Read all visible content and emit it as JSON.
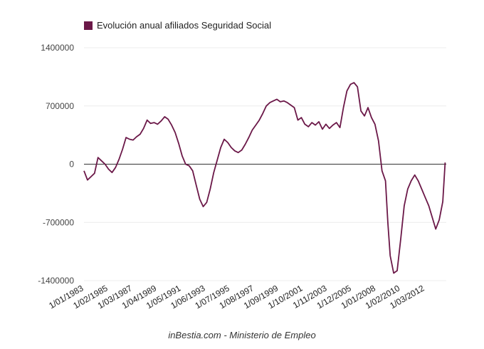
{
  "chart_data": {
    "type": "line",
    "title": "",
    "xlabel": "",
    "ylabel": "",
    "ylim": [
      -1400000,
      1400000
    ],
    "yticks": [
      1400000,
      700000,
      0,
      -700000,
      -1400000
    ],
    "ytick_labels": [
      "1400000",
      "700000",
      "0",
      "-700000",
      "-1400000"
    ],
    "xlim": [
      1983.0,
      2014.0
    ],
    "xticks": [
      1983.0,
      1985.08,
      1987.17,
      1989.25,
      1991.33,
      1993.42,
      1995.5,
      1997.58,
      1999.67,
      2001.75,
      2003.83,
      2005.92,
      2008.0,
      2010.08,
      2012.17
    ],
    "xtick_labels": [
      "1/01/1983",
      "1/02/1985",
      "1/03/1987",
      "1/04/1989",
      "1/05/1991",
      "1/06/1993",
      "1/07/1995",
      "1/08/1997",
      "1/09/1999",
      "1/10/2001",
      "1/11/2003",
      "1/12/2005",
      "1/01/2008",
      "1/02/2010",
      "1/03/2012"
    ],
    "legend_position": "top-left",
    "series": [
      {
        "name": "Evolución anual afiliados Seguridad Social",
        "color": "#6b1848",
        "x": [
          1983.0,
          1983.3,
          1983.6,
          1983.9,
          1984.2,
          1984.5,
          1984.8,
          1985.1,
          1985.4,
          1985.7,
          1986.0,
          1986.3,
          1986.6,
          1986.9,
          1987.2,
          1987.5,
          1987.8,
          1988.1,
          1988.4,
          1988.7,
          1989.0,
          1989.3,
          1989.6,
          1989.9,
          1990.2,
          1990.5,
          1990.8,
          1991.1,
          1991.4,
          1991.7,
          1992.0,
          1992.3,
          1992.6,
          1992.9,
          1993.2,
          1993.5,
          1993.8,
          1994.1,
          1994.4,
          1994.7,
          1995.0,
          1995.3,
          1995.6,
          1995.9,
          1996.2,
          1996.5,
          1996.8,
          1997.1,
          1997.4,
          1997.7,
          1998.0,
          1998.3,
          1998.6,
          1998.9,
          1999.2,
          1999.5,
          1999.8,
          2000.1,
          2000.4,
          2000.7,
          2001.0,
          2001.3,
          2001.6,
          2001.9,
          2002.2,
          2002.5,
          2002.8,
          2003.1,
          2003.4,
          2003.7,
          2004.0,
          2004.3,
          2004.6,
          2004.9,
          2005.2,
          2005.5,
          2005.8,
          2006.1,
          2006.4,
          2006.7,
          2007.0,
          2007.3,
          2007.6,
          2007.9,
          2008.2,
          2008.5,
          2008.8,
          2009.0,
          2009.2,
          2009.5,
          2009.8,
          2010.1,
          2010.4,
          2010.7,
          2011.0,
          2011.3,
          2011.6,
          2011.9,
          2012.2,
          2012.5,
          2012.8,
          2013.1,
          2013.4,
          2013.7,
          2013.9
        ],
        "values": [
          -80000,
          -190000,
          -150000,
          -110000,
          80000,
          40000,
          0,
          -60000,
          -100000,
          -40000,
          60000,
          180000,
          320000,
          300000,
          290000,
          330000,
          360000,
          430000,
          530000,
          490000,
          500000,
          480000,
          520000,
          570000,
          540000,
          470000,
          380000,
          250000,
          100000,
          0,
          -20000,
          -80000,
          -250000,
          -420000,
          -510000,
          -460000,
          -300000,
          -100000,
          50000,
          200000,
          300000,
          260000,
          200000,
          160000,
          140000,
          170000,
          240000,
          320000,
          410000,
          470000,
          530000,
          610000,
          700000,
          740000,
          760000,
          780000,
          750000,
          760000,
          740000,
          710000,
          680000,
          530000,
          560000,
          480000,
          450000,
          500000,
          470000,
          510000,
          420000,
          480000,
          430000,
          470000,
          500000,
          440000,
          680000,
          880000,
          960000,
          980000,
          930000,
          640000,
          580000,
          680000,
          560000,
          480000,
          280000,
          -80000,
          -200000,
          -700000,
          -1100000,
          -1310000,
          -1280000,
          -900000,
          -500000,
          -300000,
          -200000,
          -130000,
          -200000,
          -300000,
          -400000,
          -500000,
          -640000,
          -780000,
          -670000,
          -450000,
          20000
        ]
      }
    ],
    "source_note": "inBestia.com - Ministerio de Empleo"
  }
}
